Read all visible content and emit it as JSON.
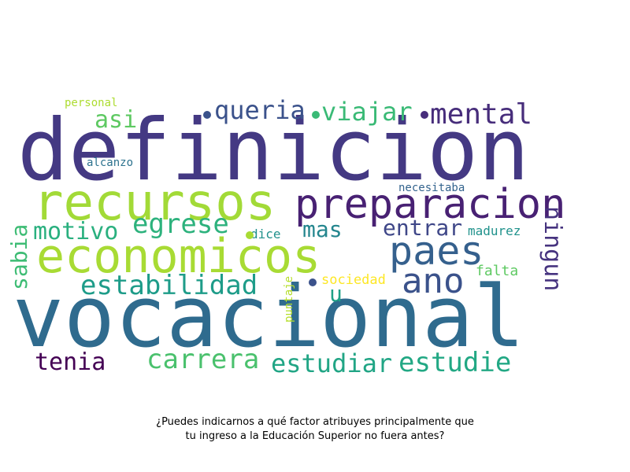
{
  "caption_line1": "¿Puedes indicarnos a qué factor atribuyes principalmente que",
  "caption_line2": "tu ingreso a la Educación Superior no fuera antes?",
  "words": [
    {
      "text": "definicion",
      "color": "#443983"
    },
    {
      "text": "vocacional",
      "color": "#2f6b8e"
    },
    {
      "text": "recursos",
      "color": "#a2da37"
    },
    {
      "text": "economicos",
      "color": "#a8db34"
    },
    {
      "text": "preparacion",
      "color": "#482173"
    },
    {
      "text": "paes",
      "color": "#35608d"
    },
    {
      "text": "ano",
      "color": "#3b528b"
    },
    {
      "text": "mental",
      "color": "#472d7b"
    },
    {
      "text": "viajar",
      "color": "#3aba76"
    },
    {
      "text": "queria",
      "color": "#3b528b"
    },
    {
      "text": "asi",
      "color": "#5ec962"
    },
    {
      "text": "egrese",
      "color": "#2db27d"
    },
    {
      "text": "motivo",
      "color": "#2ab07f"
    },
    {
      "text": "mas",
      "color": "#24868e"
    },
    {
      "text": "entrar",
      "color": "#3f4788"
    },
    {
      "text": "estabilidad",
      "color": "#1e9c89"
    },
    {
      "text": "carrera",
      "color": "#4ac16d"
    },
    {
      "text": "estudiar",
      "color": "#21a585"
    },
    {
      "text": "estudie",
      "color": "#22a884"
    },
    {
      "text": "tenia",
      "color": "#440154"
    },
    {
      "text": "ningun",
      "color": "#46337f"
    },
    {
      "text": "sabia",
      "color": "#3dbc74"
    },
    {
      "text": "u",
      "color": "#1fa187"
    },
    {
      "text": "personal",
      "color": "#addc30"
    },
    {
      "text": "alcanzo",
      "color": "#2c728e"
    },
    {
      "text": "necesitaba",
      "color": "#33638d"
    },
    {
      "text": "dice",
      "color": "#21918c"
    },
    {
      "text": "madurez",
      "color": "#20928c"
    },
    {
      "text": "falta",
      "color": "#5ec962"
    },
    {
      "text": "sociedad",
      "color": "#fde725"
    },
    {
      "text": "puntaje",
      "color": "#b5de2b"
    }
  ],
  "dots": [
    {
      "color": "#3b528b"
    },
    {
      "color": "#3aba76"
    },
    {
      "color": "#472d7b"
    },
    {
      "color": "#a8db34"
    },
    {
      "color": "#3b528b"
    }
  ]
}
